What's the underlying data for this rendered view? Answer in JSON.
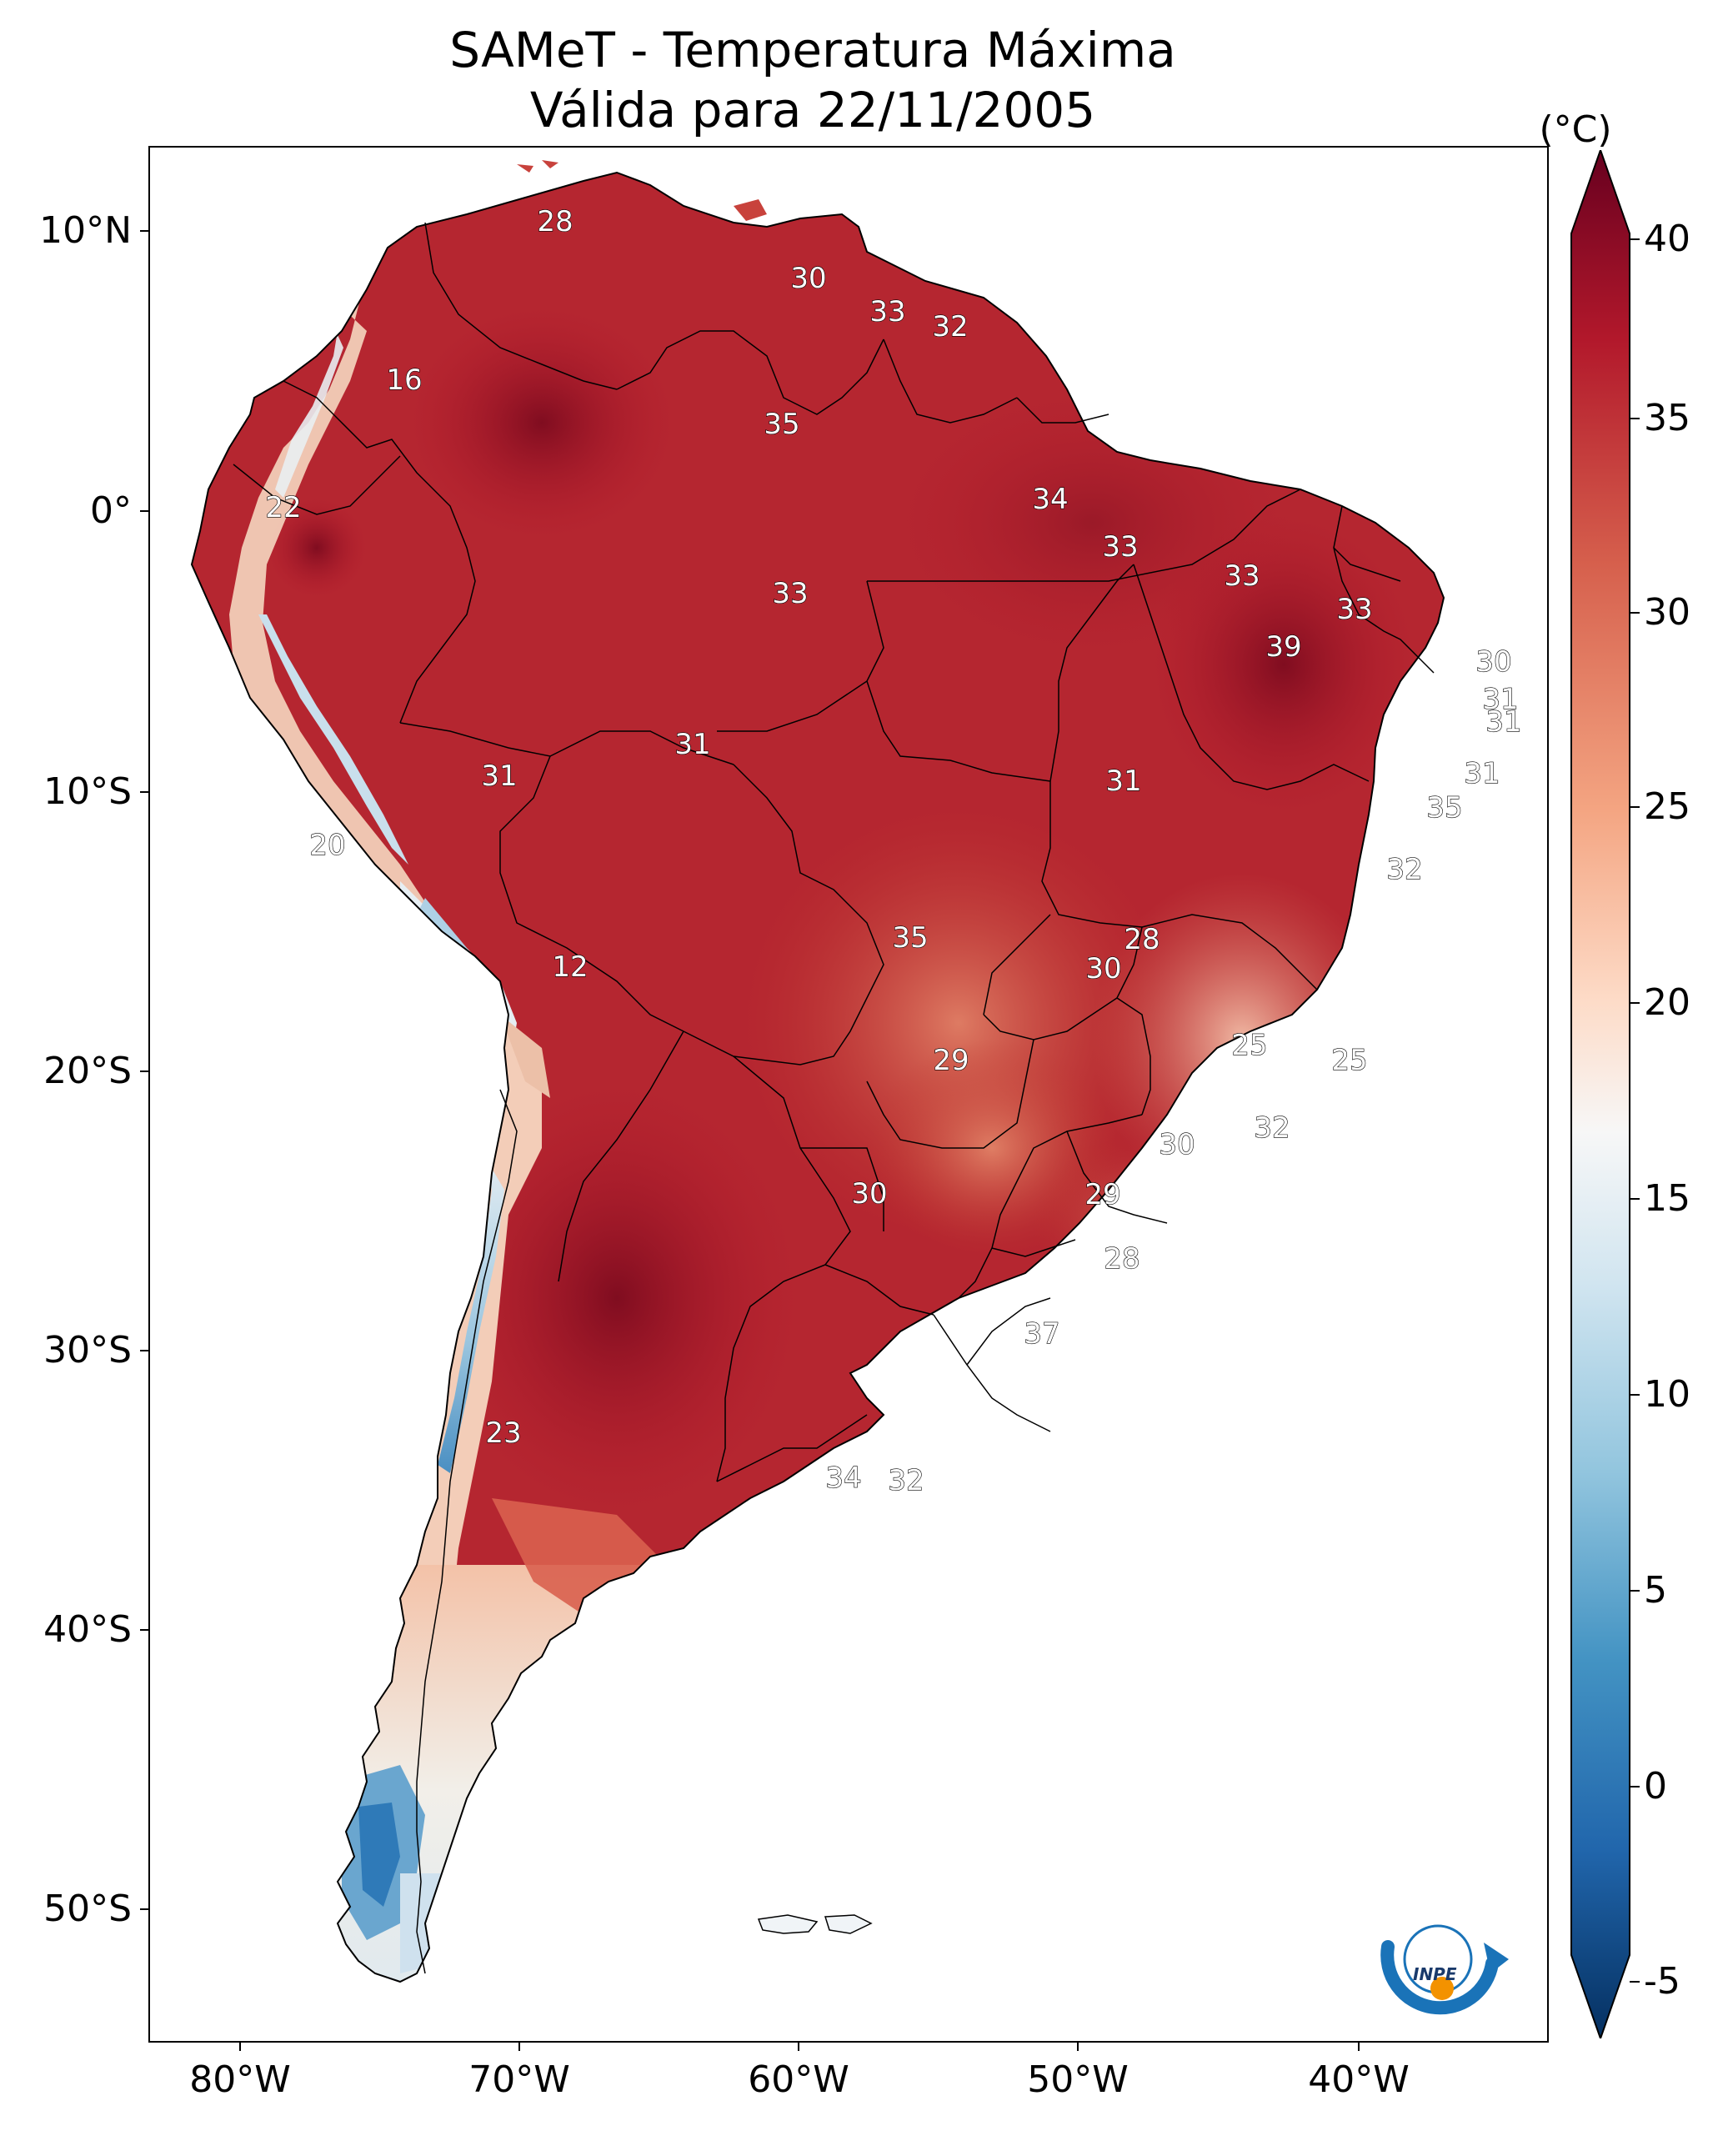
{
  "title": {
    "line1": "SAMeT - Temperatura Máxima",
    "line2": "Válida para 22/11/2005"
  },
  "map_axes": {
    "lat_ticks": [
      "10°N",
      "0°",
      "10°S",
      "20°S",
      "30°S",
      "40°S",
      "50°S"
    ],
    "lon_ticks": [
      "80°W",
      "70°W",
      "60°W",
      "50°W",
      "40°W"
    ]
  },
  "colorbar": {
    "unit": "(°C)",
    "ticks": [
      "40",
      "35",
      "30",
      "25",
      "20",
      "15",
      "10",
      "5",
      "0",
      "-5"
    ],
    "colors": [
      "#67001f",
      "#b2182b",
      "#d6604d",
      "#f4a582",
      "#fddbc7",
      "#f7f7f7",
      "#d1e5f0",
      "#92c5de",
      "#4393c3",
      "#2166ac",
      "#053061"
    ]
  },
  "station_labels": [
    {
      "id": "caribe",
      "value": "28"
    },
    {
      "id": "guiana",
      "value": "30"
    },
    {
      "id": "suriname",
      "value": "33"
    },
    {
      "id": "fr-guiana",
      "value": "32"
    },
    {
      "id": "colombia-andes",
      "value": "16"
    },
    {
      "id": "roraima",
      "value": "35"
    },
    {
      "id": "ecuador",
      "value": "22"
    },
    {
      "id": "amapa",
      "value": "34"
    },
    {
      "id": "belem",
      "value": "33"
    },
    {
      "id": "maranhao-coast",
      "value": "33"
    },
    {
      "id": "ceara",
      "value": "33"
    },
    {
      "id": "amazonas",
      "value": "33"
    },
    {
      "id": "piaui",
      "value": "39"
    },
    {
      "id": "rn",
      "value": "30"
    },
    {
      "id": "pb",
      "value": "31"
    },
    {
      "id": "pe",
      "value": "31"
    },
    {
      "id": "al",
      "value": "31"
    },
    {
      "id": "se",
      "value": "35"
    },
    {
      "id": "acre",
      "value": "31"
    },
    {
      "id": "rondonia",
      "value": "31"
    },
    {
      "id": "tocantins",
      "value": "31"
    },
    {
      "id": "bahia",
      "value": "32"
    },
    {
      "id": "peru",
      "value": "20"
    },
    {
      "id": "bolivia-andes",
      "value": "12"
    },
    {
      "id": "mato-grosso",
      "value": "35"
    },
    {
      "id": "goias-n",
      "value": "28"
    },
    {
      "id": "goias",
      "value": "30"
    },
    {
      "id": "minas",
      "value": "25"
    },
    {
      "id": "es",
      "value": "25"
    },
    {
      "id": "ms",
      "value": "29"
    },
    {
      "id": "rj",
      "value": "32"
    },
    {
      "id": "sp",
      "value": "30"
    },
    {
      "id": "paraguay",
      "value": "30"
    },
    {
      "id": "parana",
      "value": "29"
    },
    {
      "id": "sc",
      "value": "28"
    },
    {
      "id": "rs",
      "value": "37"
    },
    {
      "id": "chile-central",
      "value": "23"
    },
    {
      "id": "buenos-aires",
      "value": "34"
    },
    {
      "id": "uruguay",
      "value": "32"
    }
  ],
  "logo_text": "INPE"
}
